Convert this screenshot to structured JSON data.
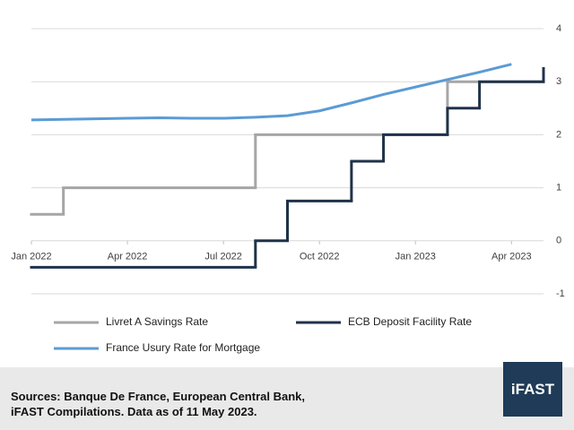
{
  "chart_data": {
    "type": "line",
    "xlim": [
      "2022-01",
      "2023-05"
    ],
    "xticks": [
      {
        "value": "2022-01",
        "label": "Jan 2022"
      },
      {
        "value": "2022-04",
        "label": "Apr 2022"
      },
      {
        "value": "2022-07",
        "label": "Jul 2022"
      },
      {
        "value": "2022-10",
        "label": "Oct 2022"
      },
      {
        "value": "2023-01",
        "label": "Jan 2023"
      },
      {
        "value": "2023-04",
        "label": "Apr 2023"
      }
    ],
    "ylim": [
      -1,
      4
    ],
    "yticks": [
      -1,
      0,
      1,
      2,
      3,
      4
    ],
    "grid": true,
    "series": [
      {
        "name": "Livret A Savings Rate",
        "color": "#a6a6a6",
        "step": true,
        "x": [
          "2022-01",
          "2022-02",
          "2022-08",
          "2023-02",
          "2023-05"
        ],
        "values": [
          0.5,
          1,
          2,
          3,
          3
        ]
      },
      {
        "name": "ECB Deposit Facility Rate",
        "color": "#203249",
        "step": true,
        "x": [
          "2022-01",
          "2022-08",
          "2022-09",
          "2022-11",
          "2022-12",
          "2023-02",
          "2023-03",
          "2023-05"
        ],
        "values": [
          -0.5,
          0,
          0.75,
          1.5,
          2,
          2.5,
          3,
          3.25
        ]
      },
      {
        "name": "France Usury Rate for Mortgage",
        "color": "#5b9bd5",
        "step": false,
        "x": [
          "2022-01",
          "2022-02",
          "2022-03",
          "2022-04",
          "2022-05",
          "2022-06",
          "2022-07",
          "2022-08",
          "2022-09",
          "2022-10",
          "2022-11",
          "2022-12",
          "2023-01",
          "2023-02",
          "2023-03",
          "2023-04"
        ],
        "values": [
          2.28,
          2.29,
          2.3,
          2.31,
          2.32,
          2.31,
          2.31,
          2.33,
          2.36,
          2.45,
          2.6,
          2.76,
          2.9,
          3.04,
          3.18,
          3.33
        ]
      }
    ]
  },
  "footer": {
    "source_lines": [
      "Sources: Banque De France, European Central Bank,",
      "iFAST Compilations. Data as of 11 May 2023."
    ],
    "logo": "iFAST"
  }
}
